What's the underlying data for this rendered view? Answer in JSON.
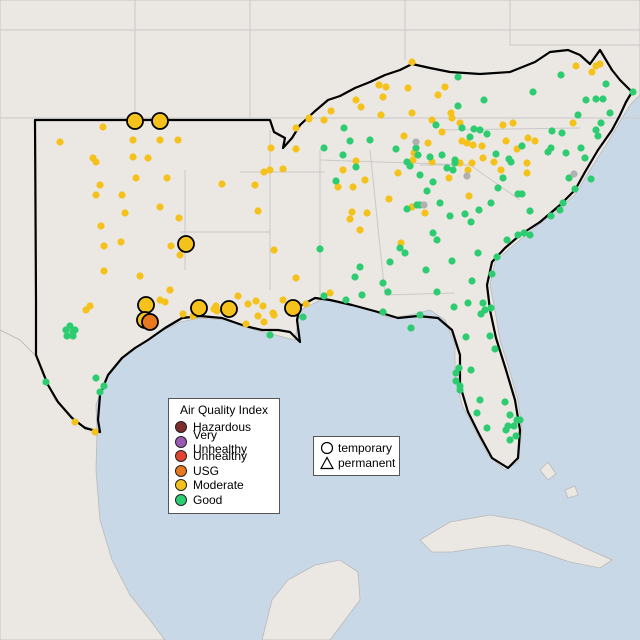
{
  "legend": {
    "title": "Air Quality Index",
    "categories": [
      {
        "label": "Hazardous",
        "color": "#7e2c2c"
      },
      {
        "label": "Very Unhealthy",
        "color": "#9b5bb5"
      },
      {
        "label": "Unhealthy",
        "color": "#e0452e"
      },
      {
        "label": "USG",
        "color": "#e8791e"
      },
      {
        "label": "Moderate",
        "color": "#f5c21b"
      },
      {
        "label": "Good",
        "color": "#2ecc71"
      }
    ]
  },
  "shape_legend": {
    "temporary": "temporary",
    "permanent": "permanent"
  },
  "map_colors": {
    "ocean": "#c9d8e6",
    "land": "#ebe8e3",
    "outline": "#000000",
    "state_border": "#c9c9c9",
    "no_data": "#b0b0b0"
  },
  "monitor_markers": {
    "aqi_counts": {
      "Moderate": 140,
      "Good": 150,
      "USG": 1,
      "No data": 4
    }
  }
}
